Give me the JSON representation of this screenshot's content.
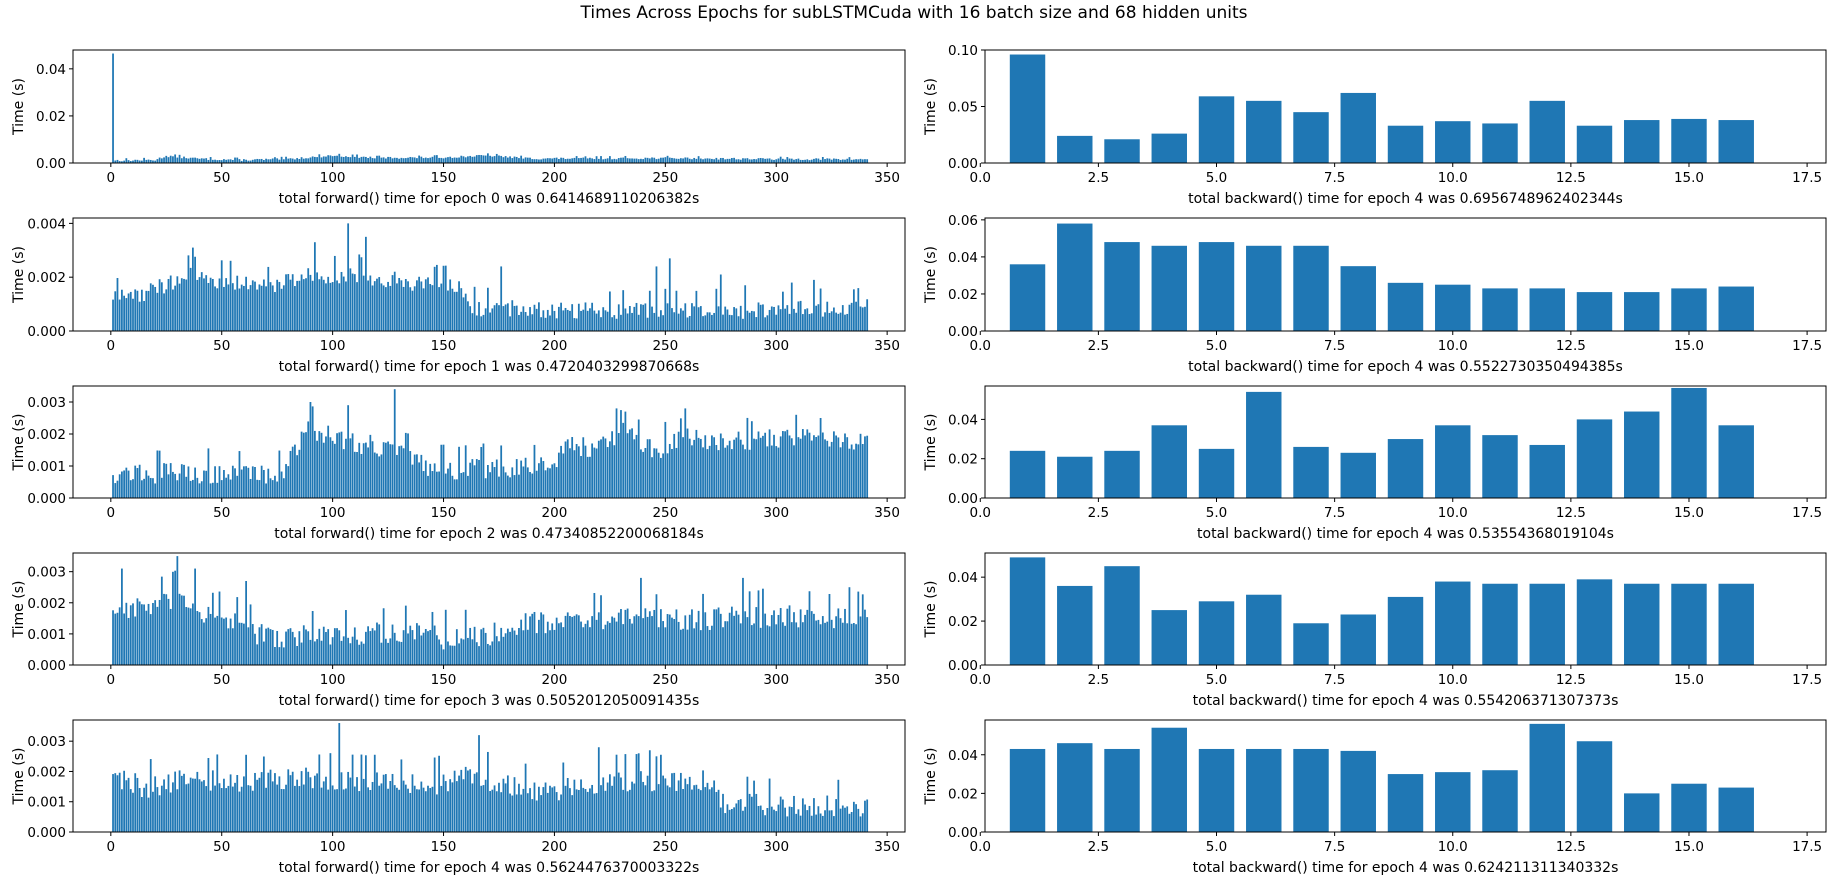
{
  "figure": {
    "suptitle": "Times Across Epochs for subLSTMCuda with 16 batch size and 68 hidden units",
    "bar_color": "#1f77b4"
  },
  "chart_data": [
    {
      "type": "bar",
      "xlabel": "total forward() time for epoch 0 was 0.6414689110206382s",
      "ylabel": "Time (s)",
      "xlim": [
        -17.05,
        358.05
      ],
      "ylim": [
        0,
        0.048
      ],
      "xticks": [
        0,
        50,
        100,
        150,
        200,
        250,
        300,
        350
      ],
      "yticks": [
        0,
        0.02,
        0.04
      ],
      "ytick_labels": [
        "0.00",
        "0.02",
        "0.04"
      ],
      "x_range": [
        1,
        341
      ],
      "bar_width": 0.8,
      "profile": [
        [
          1,
          0.0465
        ],
        [
          2,
          0.0011
        ],
        [
          20,
          0.0013
        ],
        [
          25,
          0.003
        ],
        [
          40,
          0.0018
        ],
        [
          60,
          0.0013
        ],
        [
          80,
          0.0017
        ],
        [
          100,
          0.0032
        ],
        [
          120,
          0.0022
        ],
        [
          150,
          0.0024
        ],
        [
          170,
          0.0032
        ],
        [
          190,
          0.0019
        ],
        [
          250,
          0.0021
        ],
        [
          300,
          0.0017
        ],
        [
          341,
          0.0016
        ]
      ],
      "noise": 0.0009,
      "spikes": []
    },
    {
      "type": "bar",
      "xlabel": "total forward() time for epoch 1 was 0.4720403299870668s",
      "ylabel": "Time (s)",
      "xlim": [
        -17.05,
        358.05
      ],
      "ylim": [
        0,
        0.0042
      ],
      "xticks": [
        0,
        50,
        100,
        150,
        200,
        250,
        300,
        350
      ],
      "yticks": [
        0,
        0.002,
        0.004
      ],
      "ytick_labels": [
        "0.000",
        "0.002",
        "0.004"
      ],
      "x_range": [
        1,
        341
      ],
      "bar_width": 0.8,
      "profile": [
        [
          1,
          0.0013
        ],
        [
          15,
          0.0014
        ],
        [
          35,
          0.0021
        ],
        [
          50,
          0.0019
        ],
        [
          70,
          0.0017
        ],
        [
          90,
          0.0021
        ],
        [
          110,
          0.0021
        ],
        [
          130,
          0.0019
        ],
        [
          158,
          0.0016
        ],
        [
          162,
          0.0009
        ],
        [
          200,
          0.0008
        ],
        [
          250,
          0.0008
        ],
        [
          300,
          0.0008
        ],
        [
          341,
          0.0009
        ]
      ],
      "noise": 0.0007,
      "spikes": [
        [
          37,
          0.0031
        ],
        [
          92,
          0.0033
        ],
        [
          107,
          0.004
        ],
        [
          115,
          0.0035
        ],
        [
          176,
          0.0024
        ],
        [
          246,
          0.0024
        ],
        [
          252,
          0.0027
        ],
        [
          275,
          0.0021
        ],
        [
          286,
          0.0017
        ],
        [
          307,
          0.0018
        ],
        [
          317,
          0.0019
        ]
      ]
    },
    {
      "type": "bar",
      "xlabel": "total forward() time for epoch 2 was 0.47340852200068184s",
      "ylabel": "Time (s)",
      "xlim": [
        -17.05,
        358.05
      ],
      "ylim": [
        0,
        0.0035
      ],
      "xticks": [
        0,
        50,
        100,
        150,
        200,
        250,
        300,
        350
      ],
      "yticks": [
        0,
        0.001,
        0.002,
        0.003
      ],
      "ytick_labels": [
        "0.000",
        "0.001",
        "0.002",
        "0.003"
      ],
      "x_range": [
        1,
        341
      ],
      "bar_width": 0.8,
      "profile": [
        [
          1,
          0.0008
        ],
        [
          50,
          0.0008
        ],
        [
          78,
          0.0008
        ],
        [
          82,
          0.0015
        ],
        [
          90,
          0.0022
        ],
        [
          105,
          0.0018
        ],
        [
          125,
          0.0016
        ],
        [
          145,
          0.0009
        ],
        [
          200,
          0.001
        ],
        [
          203,
          0.0017
        ],
        [
          220,
          0.0016
        ],
        [
          230,
          0.0021
        ],
        [
          245,
          0.0015
        ],
        [
          260,
          0.0019
        ],
        [
          280,
          0.0018
        ],
        [
          300,
          0.0019
        ],
        [
          320,
          0.002
        ],
        [
          341,
          0.0017
        ]
      ],
      "noise": 0.0007,
      "spikes": [
        [
          90,
          0.003
        ],
        [
          107,
          0.0029
        ],
        [
          128,
          0.0034
        ],
        [
          228,
          0.0028
        ],
        [
          232,
          0.0027
        ],
        [
          259,
          0.0028
        ],
        [
          289,
          0.0024
        ],
        [
          309,
          0.0026
        ],
        [
          320,
          0.0025
        ]
      ]
    },
    {
      "type": "bar",
      "xlabel": "total forward() time for epoch 3 was 0.5052012050091435s",
      "ylabel": "Time (s)",
      "xlim": [
        -17.05,
        358.05
      ],
      "ylim": [
        0,
        0.0036
      ],
      "xticks": [
        0,
        50,
        100,
        150,
        200,
        250,
        300,
        350
      ],
      "yticks": [
        0,
        0.001,
        0.002,
        0.003
      ],
      "ytick_labels": [
        "0.000",
        "0.001",
        "0.002",
        "0.003"
      ],
      "x_range": [
        1,
        341
      ],
      "bar_width": 0.8,
      "profile": [
        [
          1,
          0.0018
        ],
        [
          20,
          0.0019
        ],
        [
          30,
          0.0022
        ],
        [
          45,
          0.0016
        ],
        [
          60,
          0.0013
        ],
        [
          70,
          0.0009
        ],
        [
          100,
          0.001
        ],
        [
          130,
          0.0011
        ],
        [
          150,
          0.0009
        ],
        [
          170,
          0.001
        ],
        [
          190,
          0.0014
        ],
        [
          220,
          0.0015
        ],
        [
          260,
          0.0015
        ],
        [
          300,
          0.0016
        ],
        [
          341,
          0.0015
        ]
      ],
      "noise": 0.0008,
      "spikes": [
        [
          5,
          0.0031
        ],
        [
          30,
          0.0035
        ],
        [
          38,
          0.0031
        ],
        [
          61,
          0.0027
        ],
        [
          239,
          0.0028
        ],
        [
          285,
          0.0028
        ],
        [
          333,
          0.0025
        ]
      ]
    },
    {
      "type": "bar",
      "xlabel": "total forward() time for epoch 4 was 0.5624476370003322s",
      "ylabel": "Time (s)",
      "xlim": [
        -17.05,
        358.05
      ],
      "ylim": [
        0,
        0.0037
      ],
      "xticks": [
        0,
        50,
        100,
        150,
        200,
        250,
        300,
        350
      ],
      "yticks": [
        0,
        0.001,
        0.002,
        0.003
      ],
      "ytick_labels": [
        "0.000",
        "0.001",
        "0.002",
        "0.003"
      ],
      "x_range": [
        1,
        341
      ],
      "bar_width": 0.8,
      "profile": [
        [
          1,
          0.0019
        ],
        [
          15,
          0.0015
        ],
        [
          30,
          0.0017
        ],
        [
          60,
          0.0017
        ],
        [
          90,
          0.0018
        ],
        [
          120,
          0.0017
        ],
        [
          145,
          0.0016
        ],
        [
          165,
          0.0019
        ],
        [
          185,
          0.0014
        ],
        [
          200,
          0.0014
        ],
        [
          225,
          0.0017
        ],
        [
          270,
          0.0017
        ],
        [
          277,
          0.001
        ],
        [
          300,
          0.0009
        ],
        [
          341,
          0.0009
        ]
      ],
      "noise": 0.0008,
      "spikes": [
        [
          103,
          0.0036
        ],
        [
          166,
          0.0032
        ],
        [
          220,
          0.0028
        ],
        [
          238,
          0.0026
        ],
        [
          243,
          0.0027
        ],
        [
          246,
          0.0025
        ]
      ]
    },
    {
      "type": "bar",
      "xlabel": "total backward() time for epoch 4 was 0.6956748962402344s",
      "ylabel": "Time (s)",
      "xlim": [
        0.1,
        17.9
      ],
      "ylim": [
        0,
        0.1
      ],
      "xticks": [
        0,
        2.5,
        5,
        7.5,
        10,
        12.5,
        15,
        17.5
      ],
      "xtick_labels": [
        "0.0",
        "2.5",
        "5.0",
        "7.5",
        "10.0",
        "12.5",
        "15.0",
        "17.5"
      ],
      "yticks": [
        0,
        0.05,
        0.1
      ],
      "ytick_labels": [
        "0.00",
        "0.05",
        "0.10"
      ],
      "bar_width": 0.75,
      "x": [
        1,
        2,
        3,
        4,
        5,
        6,
        7,
        8,
        9,
        10,
        11,
        12,
        13,
        14,
        15,
        16,
        17
      ],
      "values": [
        0.096,
        0.024,
        0.021,
        0.026,
        0.059,
        0.055,
        0.045,
        0.062,
        0.033,
        0.037,
        0.035,
        0.055,
        0.033,
        0.038,
        0.039,
        0.038,
        null
      ]
    },
    {
      "type": "bar",
      "xlabel": "total backward() time for epoch 4 was 0.5522730350494385s",
      "ylabel": "Time (s)",
      "xlim": [
        0.1,
        17.9
      ],
      "ylim": [
        0,
        0.061
      ],
      "xticks": [
        0,
        2.5,
        5,
        7.5,
        10,
        12.5,
        15,
        17.5
      ],
      "xtick_labels": [
        "0.0",
        "2.5",
        "5.0",
        "7.5",
        "10.0",
        "12.5",
        "15.0",
        "17.5"
      ],
      "yticks": [
        0,
        0.02,
        0.04,
        0.06
      ],
      "ytick_labels": [
        "0.00",
        "0.02",
        "0.04",
        "0.06"
      ],
      "bar_width": 0.75,
      "x": [
        1,
        2,
        3,
        4,
        5,
        6,
        7,
        8,
        9,
        10,
        11,
        12,
        13,
        14,
        15,
        16,
        17
      ],
      "values": [
        0.036,
        0.058,
        0.048,
        0.046,
        0.048,
        0.046,
        0.046,
        0.035,
        0.026,
        0.025,
        0.023,
        0.023,
        0.021,
        0.021,
        0.023,
        0.024,
        null
      ]
    },
    {
      "type": "bar",
      "xlabel": "total backward() time for epoch 4 was 0.53554368019104s",
      "ylabel": "Time (s)",
      "xlim": [
        0.1,
        17.9
      ],
      "ylim": [
        0,
        0.057
      ],
      "xticks": [
        0,
        2.5,
        5,
        7.5,
        10,
        12.5,
        15,
        17.5
      ],
      "xtick_labels": [
        "0.0",
        "2.5",
        "5.0",
        "7.5",
        "10.0",
        "12.5",
        "15.0",
        "17.5"
      ],
      "yticks": [
        0,
        0.02,
        0.04
      ],
      "ytick_labels": [
        "0.00",
        "0.02",
        "0.04"
      ],
      "bar_width": 0.75,
      "x": [
        1,
        2,
        3,
        4,
        5,
        6,
        7,
        8,
        9,
        10,
        11,
        12,
        13,
        14,
        15,
        16,
        17
      ],
      "values": [
        0.024,
        0.021,
        0.024,
        0.037,
        0.025,
        0.054,
        0.026,
        0.023,
        0.03,
        0.037,
        0.032,
        0.027,
        0.04,
        0.044,
        0.056,
        0.037,
        null
      ]
    },
    {
      "type": "bar",
      "xlabel": "total backward() time for epoch 4 was 0.554206371307373s",
      "ylabel": "Time (s)",
      "xlim": [
        0.1,
        17.9
      ],
      "ylim": [
        0,
        0.051
      ],
      "xticks": [
        0,
        2.5,
        5,
        7.5,
        10,
        12.5,
        15,
        17.5
      ],
      "xtick_labels": [
        "0.0",
        "2.5",
        "5.0",
        "7.5",
        "10.0",
        "12.5",
        "15.0",
        "17.5"
      ],
      "yticks": [
        0,
        0.02,
        0.04
      ],
      "ytick_labels": [
        "0.00",
        "0.02",
        "0.04"
      ],
      "bar_width": 0.75,
      "x": [
        1,
        2,
        3,
        4,
        5,
        6,
        7,
        8,
        9,
        10,
        11,
        12,
        13,
        14,
        15,
        16,
        17
      ],
      "values": [
        0.049,
        0.036,
        0.045,
        0.025,
        0.029,
        0.032,
        0.019,
        0.023,
        0.031,
        0.038,
        0.037,
        0.037,
        0.039,
        0.037,
        0.037,
        0.037,
        null
      ]
    },
    {
      "type": "bar",
      "xlabel": "total backward() time for epoch 4 was 0.624211311340332s",
      "ylabel": "Time (s)",
      "xlim": [
        0.1,
        17.9
      ],
      "ylim": [
        0,
        0.058
      ],
      "xticks": [
        0,
        2.5,
        5,
        7.5,
        10,
        12.5,
        15,
        17.5
      ],
      "xtick_labels": [
        "0.0",
        "2.5",
        "5.0",
        "7.5",
        "10.0",
        "12.5",
        "15.0",
        "17.5"
      ],
      "yticks": [
        0,
        0.02,
        0.04
      ],
      "ytick_labels": [
        "0.00",
        "0.02",
        "0.04"
      ],
      "bar_width": 0.75,
      "x": [
        1,
        2,
        3,
        4,
        5,
        6,
        7,
        8,
        9,
        10,
        11,
        12,
        13,
        14,
        15,
        16,
        17
      ],
      "values": [
        0.043,
        0.046,
        0.043,
        0.054,
        0.043,
        0.043,
        0.043,
        0.042,
        0.03,
        0.031,
        0.032,
        0.056,
        0.047,
        0.02,
        0.025,
        0.023,
        null
      ]
    }
  ]
}
